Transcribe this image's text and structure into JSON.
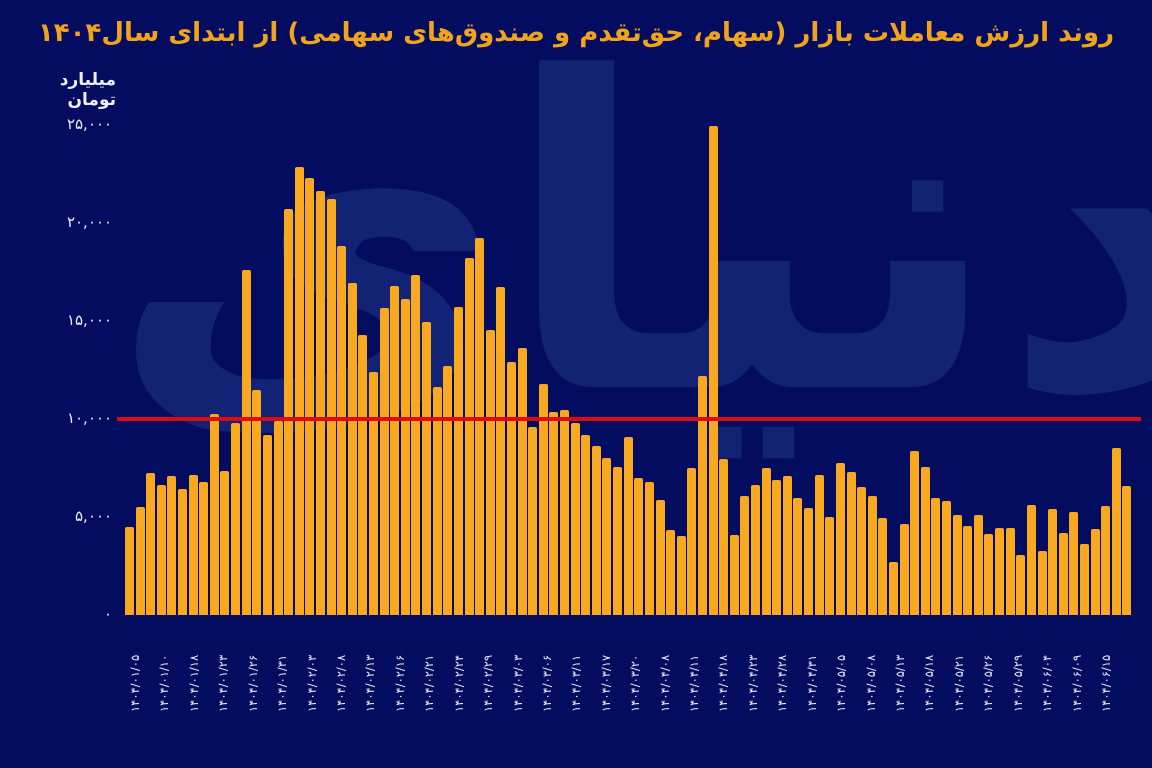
{
  "title": "روند ارزش معاملات بازار (سهام، حق‌تقدم و صندوق‌های سهامی) از ابتدای سال۱۴۰۴",
  "watermark_text": "دنیای اقتصاد",
  "y_axis": {
    "unit_label": "میلیارد تومان",
    "ticks": [
      {
        "label": "۲۵,۰۰۰",
        "value": 25000
      },
      {
        "label": "۲۰,۰۰۰",
        "value": 20000
      },
      {
        "label": "۱۵,۰۰۰",
        "value": 15000
      },
      {
        "label": "۱۰,۰۰۰",
        "value": 10000
      },
      {
        "label": "۵,۰۰۰",
        "value": 5000
      },
      {
        "label": "۰",
        "value": 0
      }
    ]
  },
  "colors": {
    "background": "#030c5f",
    "bar": "#f8a91f",
    "title": "#f0a41d",
    "tick_text": "#e9edf9",
    "reference_line": "#dd0a14",
    "watermark": "#152879"
  },
  "chart_data": {
    "type": "bar",
    "title": "روند ارزش معاملات بازار (سهام، حق‌تقدم و صندوق‌های سهامی) از ابتدای سال۱۴۰۴",
    "xlabel": "",
    "ylabel": "میلیارد تومان",
    "ylim": [
      0,
      25000
    ],
    "grid": false,
    "legend_position": "none",
    "reference_line_y": 10000,
    "x_tick_labels": [
      "۱۴۰۴/۰۱/۰۵",
      "۱۴۰۴/۰۱/۱۰",
      "۱۴۰۴/۰۱/۱۸",
      "۱۴۰۴/۰۱/۲۳",
      "۱۴۰۴/۰۱/۲۶",
      "۱۴۰۴/۰۱/۳۱",
      "۱۴۰۴/۰۲/۰۳",
      "۱۴۰۴/۰۲/۰۸",
      "۱۴۰۴/۰۲/۱۳",
      "۱۴۰۴/۰۲/۱۶",
      "۱۴۰۴/۰۲/۲۱",
      "۱۴۰۴/۰۲/۲۴",
      "۱۴۰۴/۰۲/۲۹",
      "۱۴۰۴/۰۳/۰۳",
      "۱۴۰۴/۰۳/۰۶",
      "۱۴۰۴/۰۳/۱۱",
      "۱۴۰۴/۰۳/۱۷",
      "۱۴۰۴/۰۳/۲۰",
      "۱۴۰۴/۰۴/۰۸",
      "۱۴۰۴/۰۴/۱۱",
      "۱۴۰۴/۰۴/۱۸",
      "۱۴۰۴/۰۴/۲۳",
      "۱۴۰۴/۰۴/۲۸",
      "۱۴۰۴/۰۴/۳۱",
      "۱۴۰۴/۰۵/۰۵",
      "۱۴۰۴/۰۵/۰۸",
      "۱۴۰۴/۰۵/۱۳",
      "۱۴۰۴/۰۵/۱۸",
      "۱۴۰۴/۰۵/۲۱",
      "۱۴۰۴/۰۵/۲۶",
      "۱۴۰۴/۰۵/۲۹",
      "۱۴۰۴/۰۶/۰۴",
      "۱۴۰۴/۰۶/۰۹",
      "۱۴۰۴/۰۶/۱۵"
    ],
    "values": [
      4500,
      5500,
      7250,
      6650,
      7100,
      6450,
      7150,
      6800,
      10250,
      7350,
      9800,
      17600,
      11500,
      9200,
      9900,
      20700,
      22850,
      22300,
      21650,
      21250,
      18850,
      16950,
      14300,
      12400,
      15650,
      16800,
      16150,
      17350,
      14950,
      11650,
      12700,
      15700,
      18200,
      19250,
      14550,
      16750,
      12900,
      13650,
      9600,
      11800,
      10350,
      10450,
      9800,
      9200,
      8650,
      8000,
      7550,
      9100,
      7000,
      6800,
      5850,
      4350,
      4050,
      7500,
      12200,
      24950,
      7950,
      4100,
      6050,
      6650,
      7500,
      6900,
      7100,
      5950,
      5450,
      7150,
      5000,
      7750,
      7300,
      6550,
      6050,
      4950,
      2700,
      4650,
      8350,
      7550,
      5950,
      5800,
      5100,
      4550,
      5100,
      4150,
      4450,
      4450,
      3050,
      5600,
      3250,
      5400,
      4200,
      5250,
      3650,
      4400,
      5550,
      8500,
      6600
    ]
  }
}
